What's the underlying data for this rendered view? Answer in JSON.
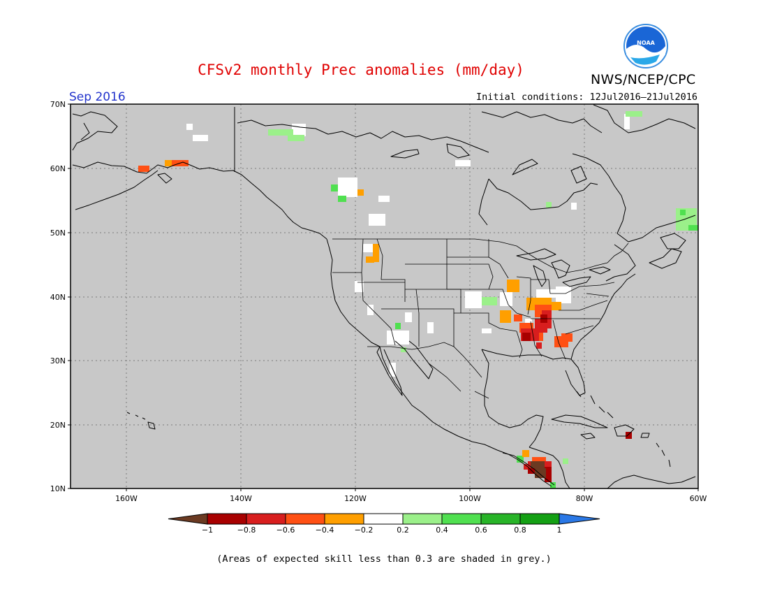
{
  "title": "CFSv2 monthly Prec anomalies (mm/day)",
  "agency": "NWS/NCEP/CPC",
  "logo_text": "NOAA",
  "target_month": "Sep 2016",
  "initial_conditions": "Initial conditions: 12Jul2016–21Jul2016",
  "footnote": "(Areas of expected skill less than 0.3 are shaded in grey.)",
  "lat_labels": [
    "70N",
    "60N",
    "50N",
    "40N",
    "30N",
    "20N",
    "10N"
  ],
  "lon_labels": [
    "160W",
    "140W",
    "120W",
    "100W",
    "80W",
    "60W"
  ],
  "colorbar": {
    "labels": [
      "−1",
      "−0.8",
      "−0.6",
      "−0.4",
      "−0.2",
      "0.2",
      "0.4",
      "0.6",
      "0.8",
      "1"
    ],
    "colors": [
      "#6b3a22",
      "#a80000",
      "#d81e1e",
      "#ff5014",
      "#ff9f00",
      "#ffffff",
      "#9bf08a",
      "#50e050",
      "#28b428",
      "#14a014",
      "#2a78e6"
    ]
  },
  "colors": {
    "title": "#e00000",
    "month": "#2233cc",
    "grey_low_skill": "#c8c8c8"
  }
}
